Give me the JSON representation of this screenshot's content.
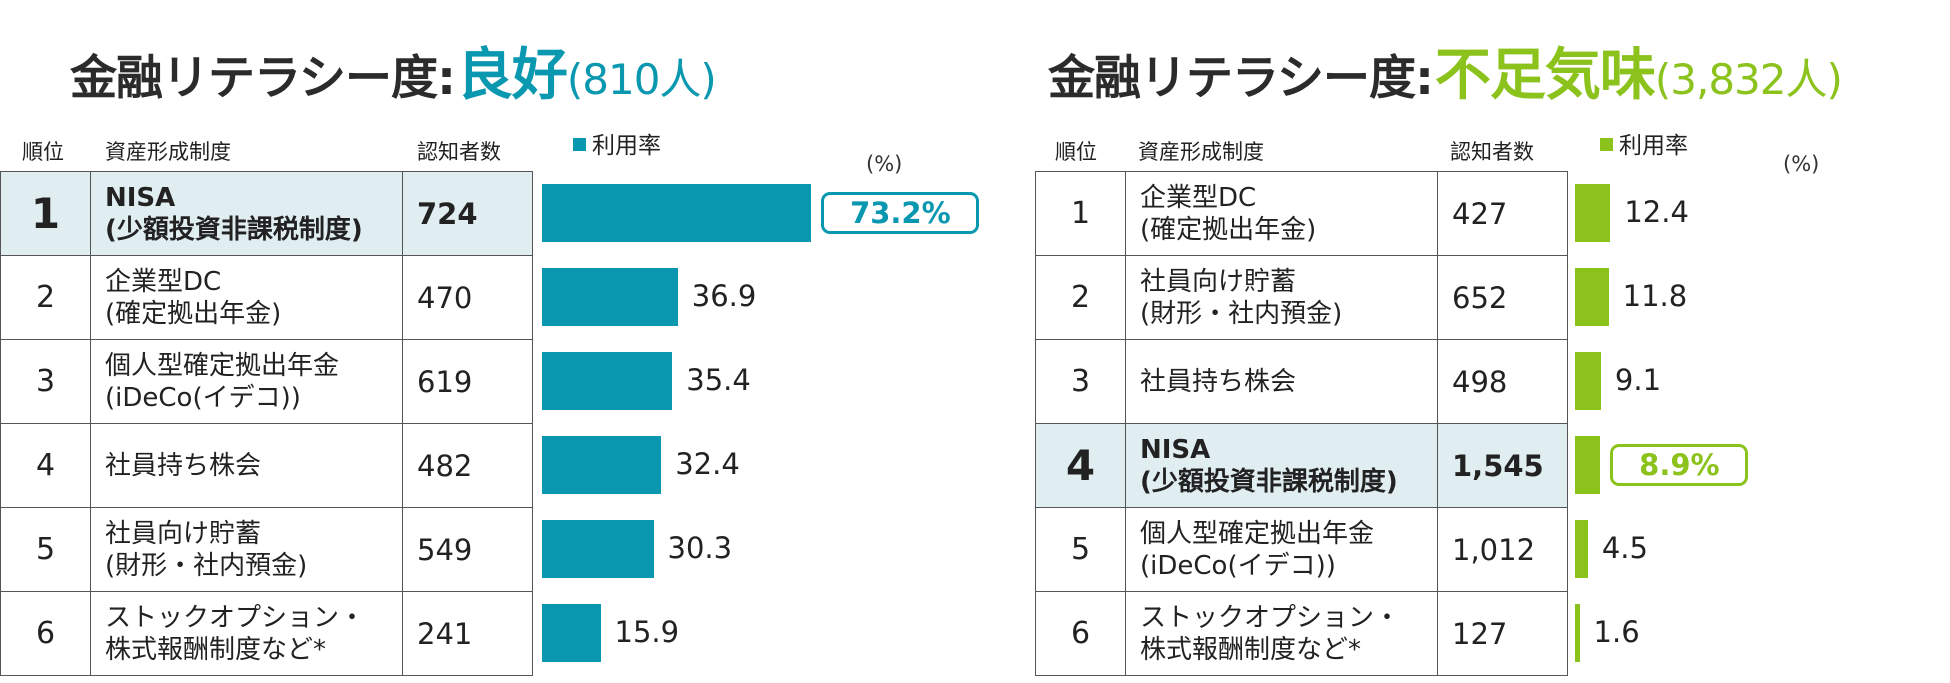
{
  "chart_data": [
    {
      "type": "bar",
      "title": {
        "prefix": "金融リテラシー度",
        "colon": ":",
        "status": "良好",
        "count": "(810人)"
      },
      "headers": {
        "rank": "順位",
        "system": "資産形成制度",
        "known": "認知者数",
        "usage": "利用率"
      },
      "unit": "(%)",
      "accent": "#0a98b0",
      "rows": [
        {
          "rank": "1",
          "name": "NISA\n(少額投資非課税制度)",
          "known": "724",
          "value": 73.2,
          "label": "73.2%",
          "highlight": true
        },
        {
          "rank": "2",
          "name": "企業型DC\n(確定拠出年金)",
          "known": "470",
          "value": 36.9,
          "label": "36.9",
          "highlight": false
        },
        {
          "rank": "3",
          "name": "個人型確定拠出年金\n(iDeCo(イデコ))",
          "known": "619",
          "value": 35.4,
          "label": "35.4",
          "highlight": false
        },
        {
          "rank": "4",
          "name": "社員持ち株会",
          "known": "482",
          "value": 32.4,
          "label": "32.4",
          "highlight": false
        },
        {
          "rank": "5",
          "name": "社員向け貯蓄\n(財形・社内預金)",
          "known": "549",
          "value": 30.3,
          "label": "30.3",
          "highlight": false
        },
        {
          "rank": "6",
          "name": "ストックオプション・\n株式報酬制度など*",
          "known": "241",
          "value": 15.9,
          "label": "15.9",
          "highlight": false
        }
      ]
    },
    {
      "type": "bar",
      "title": {
        "prefix": "金融リテラシー度",
        "colon": ":",
        "status": "不足気味",
        "count": "(3,832人)"
      },
      "headers": {
        "rank": "順位",
        "system": "資産形成制度",
        "known": "認知者数",
        "usage": "利用率"
      },
      "unit": "(%)",
      "accent": "#8cc21c",
      "rows": [
        {
          "rank": "1",
          "name": "企業型DC\n(確定拠出年金)",
          "known": "427",
          "value": 12.4,
          "label": "12.4",
          "highlight": false
        },
        {
          "rank": "2",
          "name": "社員向け貯蓄\n(財形・社内預金)",
          "known": "652",
          "value": 11.8,
          "label": "11.8",
          "highlight": false
        },
        {
          "rank": "3",
          "name": "社員持ち株会",
          "known": "498",
          "value": 9.1,
          "label": "9.1",
          "highlight": false
        },
        {
          "rank": "4",
          "name": "NISA\n(少額投資非課税制度)",
          "known": "1,545",
          "value": 8.9,
          "label": "8.9%",
          "highlight": true
        },
        {
          "rank": "5",
          "name": "個人型確定拠出年金\n(iDeCo(イデコ))",
          "known": "1,012",
          "value": 4.5,
          "label": "4.5",
          "highlight": false
        },
        {
          "rank": "6",
          "name": "ストックオプション・\n株式報酬制度など*",
          "known": "127",
          "value": 1.6,
          "label": "1.6",
          "highlight": false
        }
      ]
    }
  ]
}
